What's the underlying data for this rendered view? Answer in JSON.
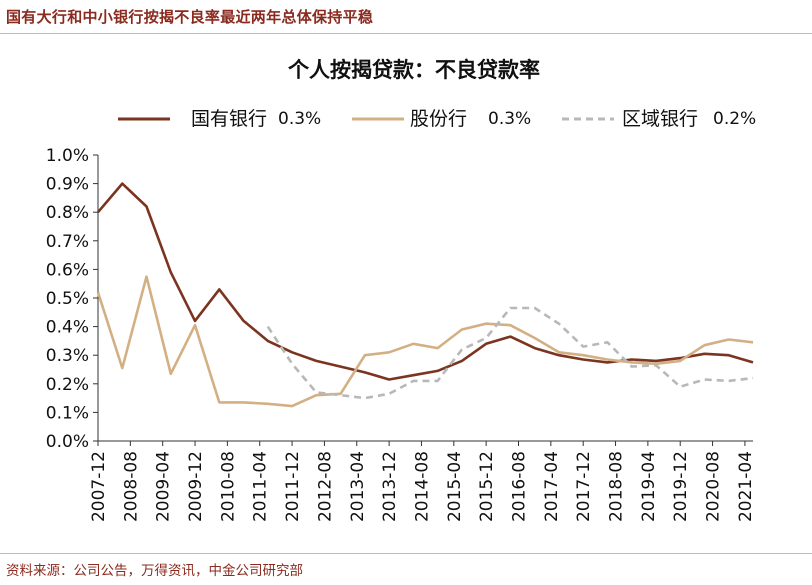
{
  "header": {
    "title": "国有大行和中小银行按揭不良率最近两年总体保持平稳"
  },
  "footer": {
    "source": "资料来源：公司公告，万得资讯，中金公司研究部"
  },
  "colors": {
    "series_big": "#7b3420",
    "series_joint": "#d3b083",
    "series_regional": "#b8b8b8",
    "header": "#8b2a1e"
  },
  "chart_data": {
    "type": "line",
    "title": "个人按揭贷款：不良贷款率",
    "xlabel": "",
    "ylabel": "",
    "ylim": [
      0,
      1.0
    ],
    "y_ticks": [
      "0.0%",
      "0.1%",
      "0.2%",
      "0.3%",
      "0.4%",
      "0.5%",
      "0.6%",
      "0.7%",
      "0.8%",
      "0.9%",
      "1.0%"
    ],
    "x_ticks": [
      "2007-12",
      "2008-08",
      "2009-04",
      "2009-12",
      "2010-08",
      "2011-04",
      "2011-12",
      "2012-08",
      "2013-04",
      "2013-12",
      "2014-08",
      "2015-04",
      "2015-12",
      "2016-08",
      "2017-04",
      "2017-12",
      "2018-08",
      "2019-04",
      "2019-12",
      "2020-08",
      "2021-04"
    ],
    "x": [
      "2007-12",
      "2008-06",
      "2008-12",
      "2009-06",
      "2009-12",
      "2010-06",
      "2010-12",
      "2011-06",
      "2011-12",
      "2012-06",
      "2012-12",
      "2013-06",
      "2013-12",
      "2014-06",
      "2014-12",
      "2015-06",
      "2015-12",
      "2016-06",
      "2016-12",
      "2017-06",
      "2017-12",
      "2018-06",
      "2018-12",
      "2019-06",
      "2019-12",
      "2020-06",
      "2020-12",
      "2021-06"
    ],
    "series": [
      {
        "name": "国有银行",
        "latest_label": "0.3%",
        "style": "solid",
        "values": [
          0.8,
          0.9,
          0.82,
          0.59,
          0.42,
          0.53,
          0.42,
          0.35,
          0.31,
          0.28,
          0.26,
          0.24,
          0.215,
          0.23,
          0.245,
          0.28,
          0.34,
          0.365,
          0.325,
          0.3,
          0.285,
          0.275,
          0.285,
          0.28,
          0.29,
          0.305,
          0.3,
          0.275
        ]
      },
      {
        "name": "股份行",
        "latest_label": "0.3%",
        "style": "solid",
        "values": [
          0.52,
          0.255,
          0.575,
          0.235,
          0.405,
          0.135,
          0.135,
          0.13,
          0.122,
          0.16,
          0.165,
          0.3,
          0.31,
          0.34,
          0.325,
          0.39,
          0.41,
          0.405,
          0.36,
          0.31,
          0.3,
          0.285,
          0.275,
          0.27,
          0.28,
          0.335,
          0.355,
          0.345
        ]
      },
      {
        "name": "区域银行",
        "latest_label": "0.2%",
        "style": "dashed",
        "values": [
          null,
          null,
          null,
          null,
          null,
          null,
          null,
          0.4,
          0.27,
          0.17,
          0.16,
          0.15,
          0.165,
          0.21,
          0.21,
          0.32,
          0.36,
          0.465,
          0.465,
          0.41,
          0.33,
          0.345,
          0.26,
          0.265,
          0.19,
          0.215,
          0.21,
          0.22
        ]
      }
    ]
  }
}
